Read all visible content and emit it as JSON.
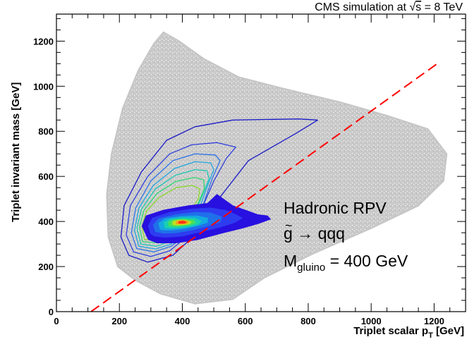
{
  "chart_data": {
    "type": "scatter",
    "title": "",
    "header": {
      "prefix": "CMS simulation at ",
      "sqrt_symbol": "√",
      "sqrt_arg": "s",
      "suffix": " = 8 TeV"
    },
    "xlabel": {
      "main": "Triplet scalar p",
      "sub": "T",
      "unit": " [GeV]"
    },
    "ylabel": "Triplet invariant mass [GeV]",
    "xlim": [
      0,
      1300
    ],
    "ylim": [
      0,
      1320
    ],
    "x_ticks": [
      0,
      200,
      400,
      600,
      800,
      1000,
      1200
    ],
    "x_tick_labels": [
      "0",
      "200",
      "400",
      "600",
      "800",
      "1000",
      "1200"
    ],
    "y_ticks": [
      0,
      200,
      400,
      600,
      800,
      1000,
      1200
    ],
    "y_tick_labels": [
      "0",
      "200",
      "400",
      "600",
      "800",
      "1000",
      "1200"
    ],
    "annotation": {
      "line1": "Hadronic RPV",
      "line2_glyph": "g",
      "line2_tilde": "~",
      "line2_rest": " → qqq",
      "line3_main": "M",
      "line3_sub": "gluino",
      "line3_rest": " = 400 GeV"
    },
    "diagonal_cut": {
      "style": "dashed",
      "color": "#ff0000",
      "points": [
        [
          110,
          0
        ],
        [
          1215,
          1105
        ]
      ]
    },
    "background_cloud": {
      "color": "#c4c4c4",
      "outline": [
        [
          195,
          200
        ],
        [
          165,
          330
        ],
        [
          160,
          520
        ],
        [
          175,
          700
        ],
        [
          210,
          900
        ],
        [
          260,
          1070
        ],
        [
          310,
          1190
        ],
        [
          340,
          1240
        ],
        [
          390,
          1200
        ],
        [
          470,
          1120
        ],
        [
          580,
          1040
        ],
        [
          720,
          990
        ],
        [
          900,
          930
        ],
        [
          1050,
          870
        ],
        [
          1180,
          810
        ],
        [
          1240,
          700
        ],
        [
          1230,
          580
        ],
        [
          1150,
          470
        ],
        [
          1000,
          370
        ],
        [
          820,
          260
        ],
        [
          660,
          150
        ],
        [
          560,
          55
        ],
        [
          440,
          35
        ],
        [
          330,
          80
        ],
        [
          250,
          140
        ]
      ]
    },
    "contours": [
      {
        "color": "#1a1ac8",
        "points": [
          [
            230,
            250
          ],
          [
            205,
            330
          ],
          [
            215,
            470
          ],
          [
            270,
            620
          ],
          [
            350,
            760
          ],
          [
            440,
            820
          ],
          [
            560,
            850
          ],
          [
            770,
            855
          ],
          [
            830,
            850
          ],
          [
            760,
            790
          ],
          [
            610,
            670
          ],
          [
            510,
            490
          ],
          [
            440,
            340
          ],
          [
            370,
            250
          ],
          [
            290,
            220
          ]
        ]
      },
      {
        "color": "#2f3fdc",
        "points": [
          [
            245,
            265
          ],
          [
            222,
            340
          ],
          [
            235,
            470
          ],
          [
            290,
            600
          ],
          [
            360,
            700
          ],
          [
            430,
            740
          ],
          [
            510,
            750
          ],
          [
            570,
            730
          ],
          [
            540,
            680
          ],
          [
            500,
            580
          ],
          [
            460,
            450
          ],
          [
            420,
            340
          ],
          [
            360,
            270
          ],
          [
            300,
            245
          ]
        ]
      },
      {
        "color": "#2d73e8",
        "points": [
          [
            255,
            280
          ],
          [
            238,
            350
          ],
          [
            252,
            460
          ],
          [
            300,
            580
          ],
          [
            370,
            670
          ],
          [
            440,
            700
          ],
          [
            505,
            695
          ],
          [
            520,
            670
          ],
          [
            495,
            590
          ],
          [
            465,
            470
          ],
          [
            425,
            360
          ],
          [
            365,
            290
          ],
          [
            310,
            265
          ]
        ]
      },
      {
        "color": "#1fa6e0",
        "points": [
          [
            262,
            290
          ],
          [
            248,
            360
          ],
          [
            262,
            460
          ],
          [
            308,
            560
          ],
          [
            375,
            635
          ],
          [
            440,
            665
          ],
          [
            490,
            660
          ],
          [
            500,
            630
          ],
          [
            480,
            560
          ],
          [
            455,
            460
          ],
          [
            420,
            370
          ],
          [
            365,
            300
          ],
          [
            315,
            278
          ]
        ]
      },
      {
        "color": "#1cc8b4",
        "points": [
          [
            268,
            300
          ],
          [
            256,
            370
          ],
          [
            270,
            455
          ],
          [
            315,
            545
          ],
          [
            378,
            605
          ],
          [
            440,
            630
          ],
          [
            478,
            625
          ],
          [
            485,
            590
          ],
          [
            465,
            520
          ],
          [
            440,
            440
          ],
          [
            405,
            370
          ],
          [
            360,
            312
          ],
          [
            318,
            290
          ]
        ]
      },
      {
        "color": "#2fd870",
        "points": [
          [
            274,
            310
          ],
          [
            264,
            375
          ],
          [
            278,
            450
          ],
          [
            320,
            525
          ],
          [
            380,
            578
          ],
          [
            438,
            595
          ],
          [
            468,
            585
          ],
          [
            470,
            545
          ],
          [
            450,
            480
          ],
          [
            425,
            420
          ],
          [
            395,
            370
          ],
          [
            358,
            325
          ],
          [
            322,
            305
          ]
        ]
      },
      {
        "color": "#8ad82a",
        "points": [
          [
            280,
            320
          ],
          [
            272,
            380
          ],
          [
            286,
            445
          ],
          [
            325,
            505
          ],
          [
            380,
            550
          ],
          [
            432,
            560
          ],
          [
            455,
            545
          ],
          [
            452,
            505
          ],
          [
            430,
            450
          ],
          [
            405,
            405
          ],
          [
            382,
            370
          ],
          [
            355,
            338
          ],
          [
            326,
            320
          ]
        ]
      }
    ],
    "filled_levels": [
      {
        "color": "#2810e0",
        "points": [
          [
            285,
            340
          ],
          [
            272,
            380
          ],
          [
            285,
            425
          ],
          [
            340,
            450
          ],
          [
            420,
            470
          ],
          [
            480,
            480
          ],
          [
            510,
            520
          ],
          [
            530,
            500
          ],
          [
            560,
            470
          ],
          [
            600,
            450
          ],
          [
            640,
            430
          ],
          [
            670,
            425
          ],
          [
            680,
            410
          ],
          [
            640,
            390
          ],
          [
            590,
            370
          ],
          [
            530,
            350
          ],
          [
            450,
            320
          ],
          [
            380,
            305
          ],
          [
            320,
            305
          ],
          [
            292,
            320
          ]
        ]
      },
      {
        "color": "#2e3cf0",
        "points": [
          [
            300,
            345
          ],
          [
            292,
            380
          ],
          [
            305,
            415
          ],
          [
            360,
            440
          ],
          [
            430,
            455
          ],
          [
            490,
            460
          ],
          [
            540,
            448
          ],
          [
            570,
            430
          ],
          [
            590,
            415
          ],
          [
            565,
            395
          ],
          [
            520,
            375
          ],
          [
            460,
            355
          ],
          [
            400,
            335
          ],
          [
            345,
            330
          ],
          [
            312,
            335
          ]
        ]
      },
      {
        "color": "#1f70ea",
        "points": [
          [
            315,
            355
          ],
          [
            308,
            385
          ],
          [
            325,
            412
          ],
          [
            380,
            430
          ],
          [
            440,
            440
          ],
          [
            490,
            438
          ],
          [
            525,
            420
          ],
          [
            520,
            398
          ],
          [
            480,
            380
          ],
          [
            430,
            362
          ],
          [
            380,
            350
          ],
          [
            340,
            348
          ]
        ]
      },
      {
        "color": "#14a8e0",
        "points": [
          [
            330,
            365
          ],
          [
            325,
            392
          ],
          [
            345,
            412
          ],
          [
            395,
            422
          ],
          [
            445,
            425
          ],
          [
            480,
            415
          ],
          [
            480,
            396
          ],
          [
            450,
            382
          ],
          [
            410,
            370
          ],
          [
            370,
            362
          ],
          [
            345,
            362
          ]
        ]
      },
      {
        "color": "#18d0b0",
        "points": [
          [
            345,
            372
          ],
          [
            342,
            395
          ],
          [
            362,
            410
          ],
          [
            402,
            416
          ],
          [
            440,
            414
          ],
          [
            460,
            402
          ],
          [
            452,
            388
          ],
          [
            425,
            378
          ],
          [
            395,
            372
          ],
          [
            365,
            370
          ]
        ]
      },
      {
        "color": "#46e05a",
        "points": [
          [
            358,
            380
          ],
          [
            356,
            398
          ],
          [
            375,
            408
          ],
          [
            408,
            410
          ],
          [
            436,
            405
          ],
          [
            442,
            394
          ],
          [
            425,
            385
          ],
          [
            398,
            380
          ],
          [
            375,
            378
          ]
        ]
      },
      {
        "color": "#c0e020",
        "points": [
          [
            370,
            386
          ],
          [
            370,
            400
          ],
          [
            388,
            406
          ],
          [
            412,
            405
          ],
          [
            428,
            398
          ],
          [
            422,
            389
          ],
          [
            402,
            385
          ],
          [
            385,
            384
          ]
        ]
      },
      {
        "color": "#f0a018",
        "points": [
          [
            380,
            390
          ],
          [
            382,
            401
          ],
          [
            400,
            404
          ],
          [
            418,
            400
          ],
          [
            416,
            392
          ],
          [
            400,
            389
          ],
          [
            390,
            389
          ]
        ]
      },
      {
        "color": "#ff3018",
        "points": [
          [
            388,
            393
          ],
          [
            390,
            400
          ],
          [
            402,
            402
          ],
          [
            412,
            398
          ],
          [
            408,
            393
          ],
          [
            398,
            392
          ]
        ]
      }
    ]
  }
}
